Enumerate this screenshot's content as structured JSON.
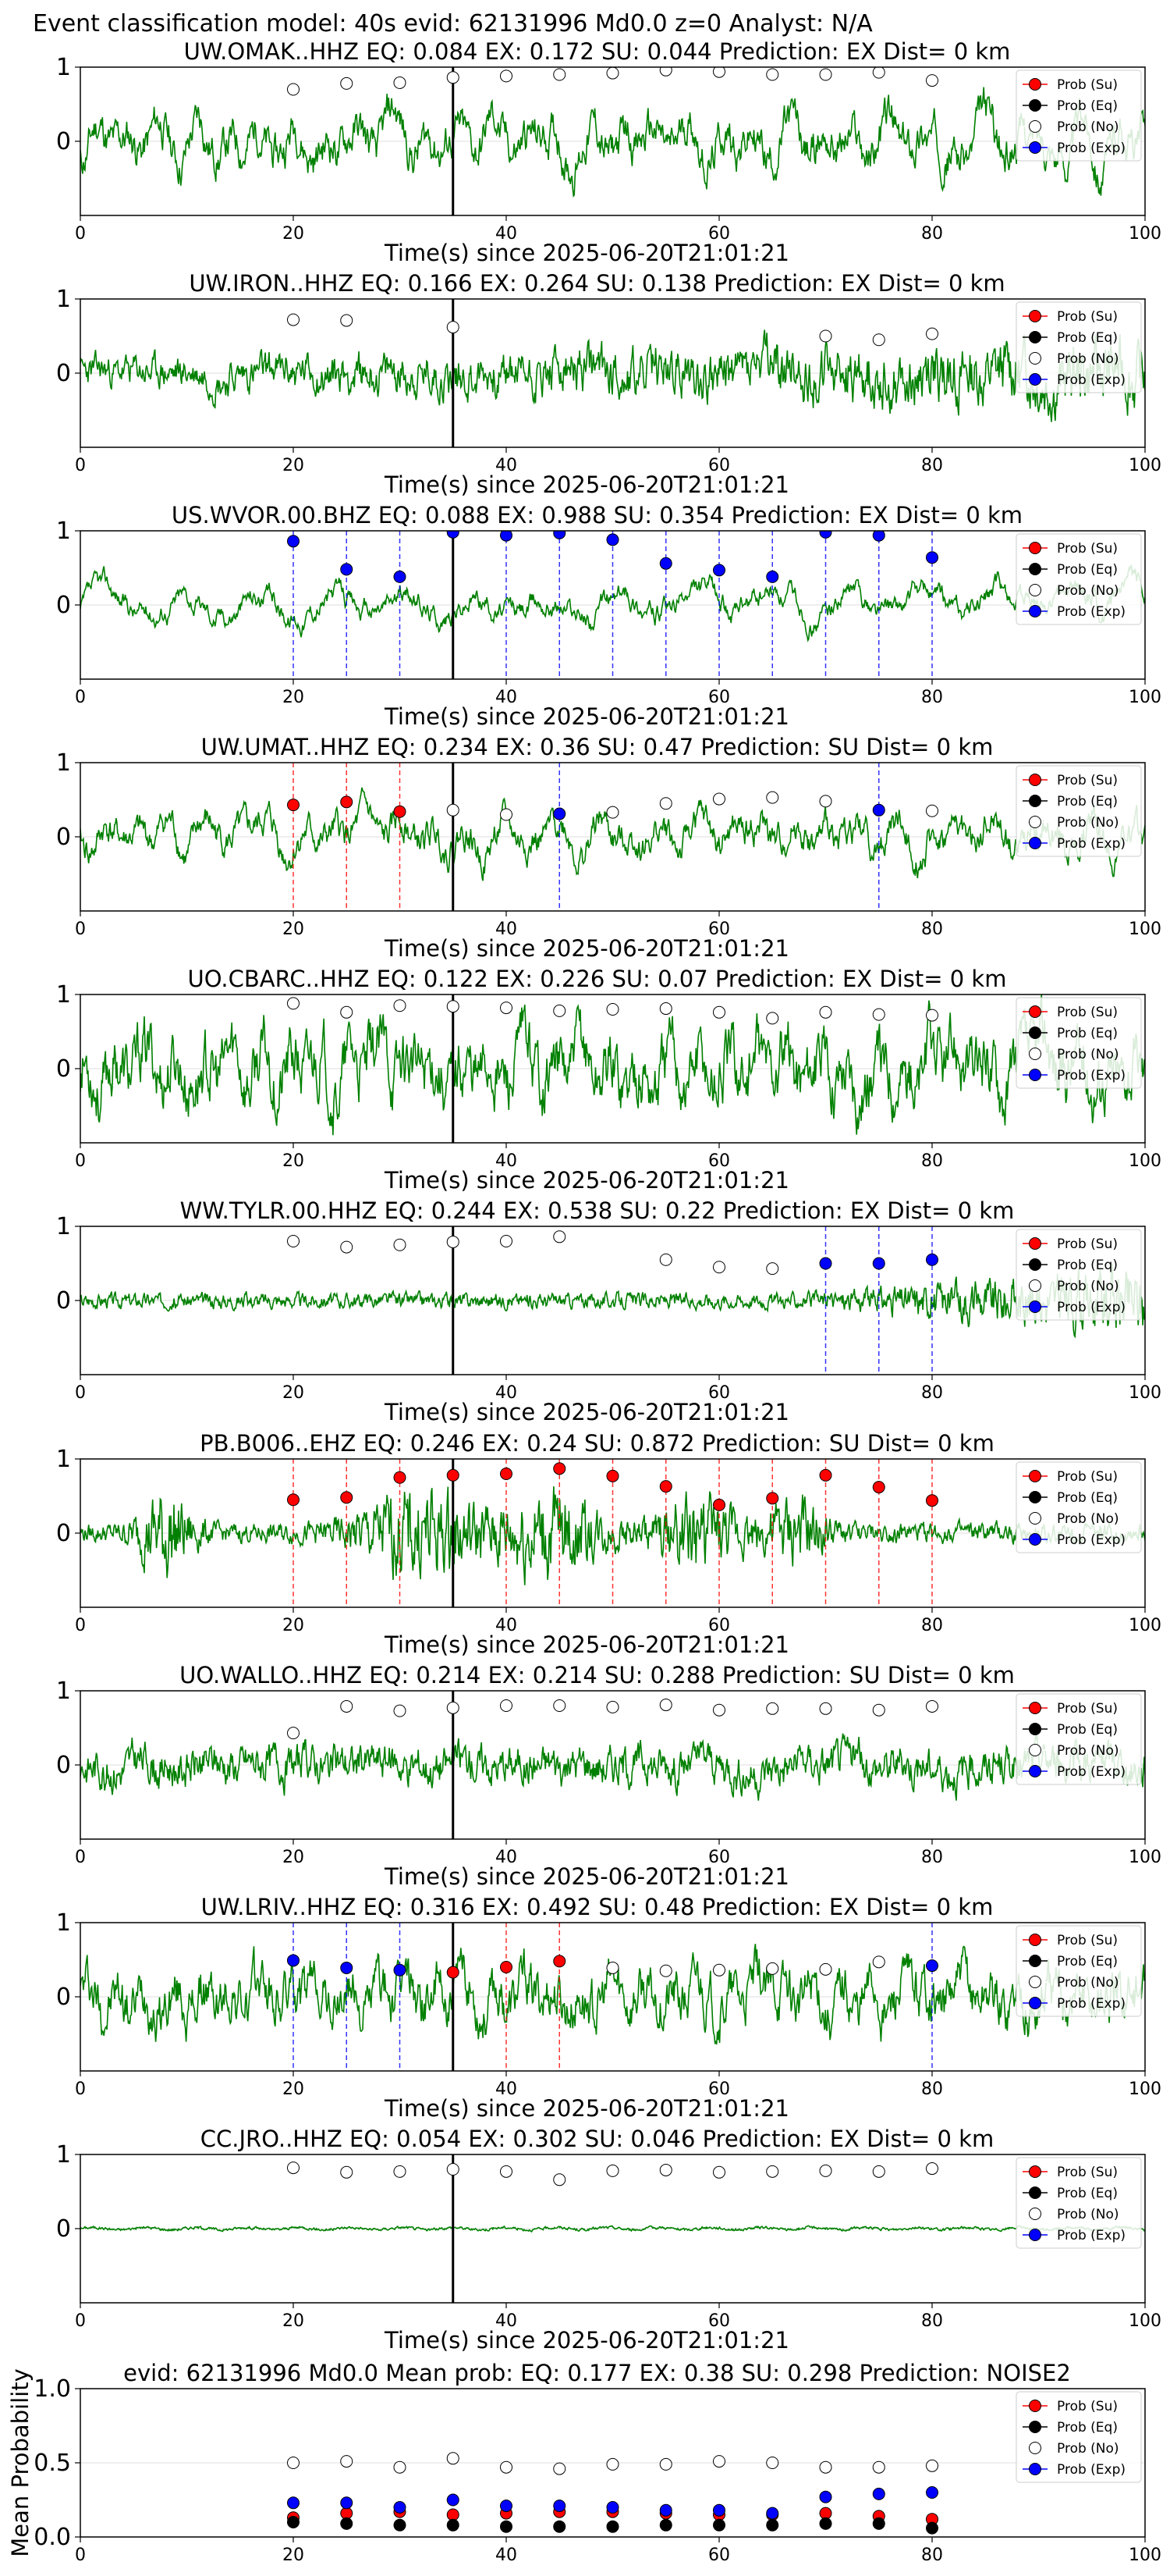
{
  "figure_title": "Event classification model: 40s evid: 62131996 Md0.0 z=0 Analyst: N/A",
  "legend_labels": [
    "Prob (Su)",
    "Prob (Eq)",
    "Prob (No)",
    "Prob (Exp)"
  ],
  "colors": {
    "su": "#ff0000",
    "eq": "#000000",
    "no": "#ffffff",
    "exp": "#0000ff",
    "waveform": "#008000",
    "vline": "#000000"
  },
  "chart_data": [
    {
      "type": "line",
      "title": "UW.OMAK..HHZ   EQ: 0.084  EX: 0.172  SU: 0.044   Prediction: EX    Dist= 0 km",
      "xlabel": "Time(s) since 2025-06-20T21:01:21",
      "xlim": [
        0,
        100
      ],
      "ylim": [
        -1,
        1
      ],
      "xticks": [
        0,
        20,
        40,
        60,
        80,
        100
      ],
      "yticks": [
        0,
        1
      ],
      "event_time": 35,
      "waveform_amp": 0.45,
      "waveform_style": "lowfreq",
      "seed": 11,
      "points": [
        {
          "x": 20,
          "y": 0.7,
          "cls": "no"
        },
        {
          "x": 25,
          "y": 0.78,
          "cls": "no"
        },
        {
          "x": 30,
          "y": 0.79,
          "cls": "no"
        },
        {
          "x": 35,
          "y": 0.86,
          "cls": "no"
        },
        {
          "x": 40,
          "y": 0.88,
          "cls": "no"
        },
        {
          "x": 45,
          "y": 0.9,
          "cls": "no"
        },
        {
          "x": 50,
          "y": 0.92,
          "cls": "no"
        },
        {
          "x": 55,
          "y": 0.96,
          "cls": "no"
        },
        {
          "x": 60,
          "y": 0.94,
          "cls": "no"
        },
        {
          "x": 65,
          "y": 0.9,
          "cls": "no"
        },
        {
          "x": 70,
          "y": 0.9,
          "cls": "no"
        },
        {
          "x": 75,
          "y": 0.93,
          "cls": "no"
        },
        {
          "x": 80,
          "y": 0.82,
          "cls": "no"
        }
      ]
    },
    {
      "type": "line",
      "title": "UW.IRON..HHZ   EQ: 0.166  EX: 0.264  SU: 0.138   Prediction: EX    Dist= 0 km",
      "xlabel": "Time(s) since 2025-06-20T21:01:21",
      "xlim": [
        0,
        100
      ],
      "ylim": [
        -1,
        1
      ],
      "xticks": [
        0,
        20,
        40,
        60,
        80,
        100
      ],
      "yticks": [
        0,
        1
      ],
      "event_time": 35,
      "waveform_amp": 0.35,
      "waveform_style": "grow",
      "seed": 23,
      "points": [
        {
          "x": 20,
          "y": 0.72,
          "cls": "no"
        },
        {
          "x": 25,
          "y": 0.71,
          "cls": "no"
        },
        {
          "x": 35,
          "y": 0.62,
          "cls": "no"
        },
        {
          "x": 70,
          "y": 0.5,
          "cls": "no"
        },
        {
          "x": 75,
          "y": 0.45,
          "cls": "no"
        },
        {
          "x": 80,
          "y": 0.53,
          "cls": "no"
        }
      ]
    },
    {
      "type": "line",
      "title": "US.WVOR.00.BHZ   EQ: 0.088  EX: 0.988  SU: 0.354   Prediction: EX    Dist= 0 km",
      "xlabel": "Time(s) since 2025-06-20T21:01:21",
      "xlim": [
        0,
        100
      ],
      "ylim": [
        -1,
        1
      ],
      "xticks": [
        0,
        20,
        40,
        60,
        80,
        100
      ],
      "yticks": [
        0,
        1
      ],
      "event_time": 35,
      "waveform_amp": 0.25,
      "waveform_style": "smooth",
      "seed": 37,
      "points": [
        {
          "x": 20,
          "y": 0.86,
          "cls": "exp"
        },
        {
          "x": 25,
          "y": 0.48,
          "cls": "exp"
        },
        {
          "x": 30,
          "y": 0.38,
          "cls": "exp"
        },
        {
          "x": 35,
          "y": 0.98,
          "cls": "exp"
        },
        {
          "x": 40,
          "y": 0.94,
          "cls": "exp"
        },
        {
          "x": 45,
          "y": 0.97,
          "cls": "exp"
        },
        {
          "x": 50,
          "y": 0.88,
          "cls": "exp"
        },
        {
          "x": 55,
          "y": 0.56,
          "cls": "exp"
        },
        {
          "x": 60,
          "y": 0.47,
          "cls": "exp"
        },
        {
          "x": 65,
          "y": 0.38,
          "cls": "exp"
        },
        {
          "x": 70,
          "y": 0.98,
          "cls": "exp"
        },
        {
          "x": 75,
          "y": 0.94,
          "cls": "exp"
        },
        {
          "x": 80,
          "y": 0.64,
          "cls": "exp"
        }
      ]
    },
    {
      "type": "line",
      "title": "UW.UMAT..HHZ   EQ: 0.234  EX: 0.36  SU: 0.47   Prediction: SU    Dist= 0 km",
      "xlabel": "Time(s) since 2025-06-20T21:01:21",
      "xlim": [
        0,
        100
      ],
      "ylim": [
        -1,
        1
      ],
      "xticks": [
        0,
        20,
        40,
        60,
        80,
        100
      ],
      "yticks": [
        0,
        1
      ],
      "event_time": 35,
      "waveform_amp": 0.35,
      "waveform_style": "lowfreq",
      "seed": 41,
      "points": [
        {
          "x": 20,
          "y": 0.43,
          "cls": "su"
        },
        {
          "x": 25,
          "y": 0.47,
          "cls": "su"
        },
        {
          "x": 30,
          "y": 0.34,
          "cls": "su"
        },
        {
          "x": 35,
          "y": 0.36,
          "cls": "no"
        },
        {
          "x": 40,
          "y": 0.3,
          "cls": "no"
        },
        {
          "x": 45,
          "y": 0.31,
          "cls": "exp"
        },
        {
          "x": 50,
          "y": 0.33,
          "cls": "no"
        },
        {
          "x": 55,
          "y": 0.45,
          "cls": "no"
        },
        {
          "x": 60,
          "y": 0.51,
          "cls": "no"
        },
        {
          "x": 65,
          "y": 0.53,
          "cls": "no"
        },
        {
          "x": 70,
          "y": 0.48,
          "cls": "no"
        },
        {
          "x": 75,
          "y": 0.36,
          "cls": "exp"
        },
        {
          "x": 80,
          "y": 0.35,
          "cls": "no"
        }
      ]
    },
    {
      "type": "line",
      "title": "UO.CBARC..HHZ   EQ: 0.122  EX: 0.226  SU: 0.07   Prediction: EX    Dist= 0 km",
      "xlabel": "Time(s) since 2025-06-20T21:01:21",
      "xlim": [
        0,
        100
      ],
      "ylim": [
        -1,
        1
      ],
      "xticks": [
        0,
        20,
        40,
        60,
        80,
        100
      ],
      "yticks": [
        0,
        1
      ],
      "event_time": 35,
      "waveform_amp": 0.5,
      "waveform_style": "mixed",
      "seed": 53,
      "points": [
        {
          "x": 20,
          "y": 0.88,
          "cls": "no"
        },
        {
          "x": 25,
          "y": 0.76,
          "cls": "no"
        },
        {
          "x": 30,
          "y": 0.85,
          "cls": "no"
        },
        {
          "x": 35,
          "y": 0.84,
          "cls": "no"
        },
        {
          "x": 40,
          "y": 0.82,
          "cls": "no"
        },
        {
          "x": 45,
          "y": 0.78,
          "cls": "no"
        },
        {
          "x": 50,
          "y": 0.8,
          "cls": "no"
        },
        {
          "x": 55,
          "y": 0.81,
          "cls": "no"
        },
        {
          "x": 60,
          "y": 0.76,
          "cls": "no"
        },
        {
          "x": 65,
          "y": 0.68,
          "cls": "no"
        },
        {
          "x": 70,
          "y": 0.76,
          "cls": "no"
        },
        {
          "x": 75,
          "y": 0.73,
          "cls": "no"
        },
        {
          "x": 80,
          "y": 0.72,
          "cls": "no"
        }
      ]
    },
    {
      "type": "line",
      "title": "WW.TYLR.00.HHZ   EQ: 0.244  EX: 0.538  SU: 0.22   Prediction: EX    Dist= 0 km",
      "xlabel": "Time(s) since 2025-06-20T21:01:21",
      "xlim": [
        0,
        100
      ],
      "ylim": [
        -1,
        1
      ],
      "xticks": [
        0,
        20,
        40,
        60,
        80,
        100
      ],
      "yticks": [
        0,
        1
      ],
      "event_time": 35,
      "waveform_amp": 0.12,
      "waveform_style": "burstlate",
      "seed": 67,
      "points": [
        {
          "x": 20,
          "y": 0.8,
          "cls": "no"
        },
        {
          "x": 25,
          "y": 0.72,
          "cls": "no"
        },
        {
          "x": 30,
          "y": 0.75,
          "cls": "no"
        },
        {
          "x": 35,
          "y": 0.79,
          "cls": "no"
        },
        {
          "x": 40,
          "y": 0.8,
          "cls": "no"
        },
        {
          "x": 45,
          "y": 0.86,
          "cls": "no"
        },
        {
          "x": 55,
          "y": 0.55,
          "cls": "no"
        },
        {
          "x": 60,
          "y": 0.45,
          "cls": "no"
        },
        {
          "x": 65,
          "y": 0.43,
          "cls": "no"
        },
        {
          "x": 70,
          "y": 0.5,
          "cls": "exp"
        },
        {
          "x": 75,
          "y": 0.5,
          "cls": "exp"
        },
        {
          "x": 80,
          "y": 0.55,
          "cls": "exp"
        }
      ]
    },
    {
      "type": "line",
      "title": "PB.B006..EHZ   EQ: 0.246  EX: 0.24  SU: 0.872   Prediction: SU    Dist= 0 km",
      "xlabel": "Time(s) since 2025-06-20T21:01:21",
      "xlim": [
        0,
        100
      ],
      "ylim": [
        -1,
        1
      ],
      "xticks": [
        0,
        20,
        40,
        60,
        80,
        100
      ],
      "yticks": [
        0,
        1
      ],
      "event_time": 35,
      "waveform_amp": 0.15,
      "waveform_style": "bursts",
      "seed": 79,
      "points": [
        {
          "x": 20,
          "y": 0.45,
          "cls": "su"
        },
        {
          "x": 25,
          "y": 0.48,
          "cls": "su"
        },
        {
          "x": 30,
          "y": 0.75,
          "cls": "su"
        },
        {
          "x": 35,
          "y": 0.78,
          "cls": "su"
        },
        {
          "x": 40,
          "y": 0.8,
          "cls": "su"
        },
        {
          "x": 45,
          "y": 0.87,
          "cls": "su"
        },
        {
          "x": 50,
          "y": 0.77,
          "cls": "su"
        },
        {
          "x": 55,
          "y": 0.63,
          "cls": "su"
        },
        {
          "x": 60,
          "y": 0.38,
          "cls": "su"
        },
        {
          "x": 65,
          "y": 0.47,
          "cls": "su"
        },
        {
          "x": 70,
          "y": 0.78,
          "cls": "su"
        },
        {
          "x": 75,
          "y": 0.62,
          "cls": "su"
        },
        {
          "x": 80,
          "y": 0.44,
          "cls": "su"
        }
      ]
    },
    {
      "type": "line",
      "title": "UO.WALLO..HHZ   EQ: 0.214  EX: 0.214  SU: 0.288   Prediction: SU    Dist= 0 km",
      "xlabel": "Time(s) since 2025-06-20T21:01:21",
      "xlim": [
        0,
        100
      ],
      "ylim": [
        -1,
        1
      ],
      "xticks": [
        0,
        20,
        40,
        60,
        80,
        100
      ],
      "yticks": [
        0,
        1
      ],
      "event_time": 35,
      "waveform_amp": 0.3,
      "waveform_style": "noise",
      "seed": 83,
      "points": [
        {
          "x": 20,
          "y": 0.43,
          "cls": "no"
        },
        {
          "x": 25,
          "y": 0.79,
          "cls": "no"
        },
        {
          "x": 30,
          "y": 0.73,
          "cls": "no"
        },
        {
          "x": 35,
          "y": 0.77,
          "cls": "no"
        },
        {
          "x": 40,
          "y": 0.8,
          "cls": "no"
        },
        {
          "x": 45,
          "y": 0.8,
          "cls": "no"
        },
        {
          "x": 50,
          "y": 0.78,
          "cls": "no"
        },
        {
          "x": 55,
          "y": 0.81,
          "cls": "no"
        },
        {
          "x": 60,
          "y": 0.74,
          "cls": "no"
        },
        {
          "x": 65,
          "y": 0.76,
          "cls": "no"
        },
        {
          "x": 70,
          "y": 0.76,
          "cls": "no"
        },
        {
          "x": 75,
          "y": 0.74,
          "cls": "no"
        },
        {
          "x": 80,
          "y": 0.79,
          "cls": "no"
        }
      ]
    },
    {
      "type": "line",
      "title": "UW.LRIV..HHZ   EQ: 0.316  EX: 0.492  SU: 0.48   Prediction: EX    Dist= 0 km",
      "xlabel": "Time(s) since 2025-06-20T21:01:21",
      "xlim": [
        0,
        100
      ],
      "ylim": [
        -1,
        1
      ],
      "xticks": [
        0,
        20,
        40,
        60,
        80,
        100
      ],
      "yticks": [
        0,
        1
      ],
      "event_time": 35,
      "waveform_amp": 0.4,
      "waveform_style": "mixed",
      "seed": 97,
      "points": [
        {
          "x": 20,
          "y": 0.49,
          "cls": "exp"
        },
        {
          "x": 25,
          "y": 0.39,
          "cls": "exp"
        },
        {
          "x": 30,
          "y": 0.36,
          "cls": "exp"
        },
        {
          "x": 35,
          "y": 0.33,
          "cls": "su"
        },
        {
          "x": 40,
          "y": 0.4,
          "cls": "su"
        },
        {
          "x": 45,
          "y": 0.48,
          "cls": "su"
        },
        {
          "x": 50,
          "y": 0.39,
          "cls": "no"
        },
        {
          "x": 55,
          "y": 0.35,
          "cls": "no"
        },
        {
          "x": 60,
          "y": 0.36,
          "cls": "no"
        },
        {
          "x": 65,
          "y": 0.38,
          "cls": "no"
        },
        {
          "x": 70,
          "y": 0.37,
          "cls": "no"
        },
        {
          "x": 75,
          "y": 0.47,
          "cls": "no"
        },
        {
          "x": 80,
          "y": 0.42,
          "cls": "exp"
        }
      ]
    },
    {
      "type": "line",
      "title": "CC.JRO..HHZ   EQ: 0.054  EX: 0.302  SU: 0.046   Prediction: EX    Dist= 0 km",
      "xlabel": "Time(s) since 2025-06-20T21:01:21",
      "xlim": [
        0,
        100
      ],
      "ylim": [
        -1,
        1
      ],
      "xticks": [
        0,
        20,
        40,
        60,
        80,
        100
      ],
      "yticks": [
        0,
        1
      ],
      "event_time": 35,
      "waveform_amp": 0.05,
      "waveform_style": "quiet",
      "seed": 101,
      "points": [
        {
          "x": 20,
          "y": 0.82,
          "cls": "no"
        },
        {
          "x": 25,
          "y": 0.76,
          "cls": "no"
        },
        {
          "x": 30,
          "y": 0.77,
          "cls": "no"
        },
        {
          "x": 35,
          "y": 0.8,
          "cls": "no"
        },
        {
          "x": 40,
          "y": 0.77,
          "cls": "no"
        },
        {
          "x": 45,
          "y": 0.66,
          "cls": "no"
        },
        {
          "x": 50,
          "y": 0.78,
          "cls": "no"
        },
        {
          "x": 55,
          "y": 0.79,
          "cls": "no"
        },
        {
          "x": 60,
          "y": 0.76,
          "cls": "no"
        },
        {
          "x": 65,
          "y": 0.77,
          "cls": "no"
        },
        {
          "x": 70,
          "y": 0.78,
          "cls": "no"
        },
        {
          "x": 75,
          "y": 0.77,
          "cls": "no"
        },
        {
          "x": 80,
          "y": 0.81,
          "cls": "no"
        }
      ]
    },
    {
      "type": "scatter",
      "title": "evid: 62131996  Md0.0   Mean prob:   EQ: 0.177  EX: 0.38  SU: 0.298   Prediction: NOISE2",
      "xlabel": "",
      "ylabel": "Mean Probability",
      "xlim": [
        0,
        100
      ],
      "ylim": [
        0,
        1
      ],
      "xticks": [
        0,
        20,
        40,
        60,
        80,
        100
      ],
      "yticks": [
        0.0,
        0.5,
        1.0
      ],
      "x": [
        20,
        25,
        30,
        35,
        40,
        45,
        50,
        55,
        60,
        65,
        70,
        75,
        80
      ],
      "series": [
        {
          "name": "Prob (Su)",
          "cls": "su",
          "values": [
            0.13,
            0.16,
            0.17,
            0.15,
            0.16,
            0.17,
            0.17,
            0.16,
            0.15,
            0.15,
            0.16,
            0.14,
            0.12
          ]
        },
        {
          "name": "Prob (Eq)",
          "cls": "eq",
          "values": [
            0.1,
            0.09,
            0.08,
            0.08,
            0.07,
            0.07,
            0.07,
            0.08,
            0.08,
            0.08,
            0.09,
            0.09,
            0.06
          ]
        },
        {
          "name": "Prob (No)",
          "cls": "no",
          "values": [
            0.5,
            0.51,
            0.47,
            0.53,
            0.47,
            0.46,
            0.49,
            0.49,
            0.51,
            0.5,
            0.47,
            0.47,
            0.48
          ]
        },
        {
          "name": "Prob (Exp)",
          "cls": "exp",
          "values": [
            0.23,
            0.23,
            0.2,
            0.25,
            0.21,
            0.21,
            0.2,
            0.18,
            0.18,
            0.16,
            0.27,
            0.29,
            0.3
          ]
        }
      ]
    }
  ]
}
